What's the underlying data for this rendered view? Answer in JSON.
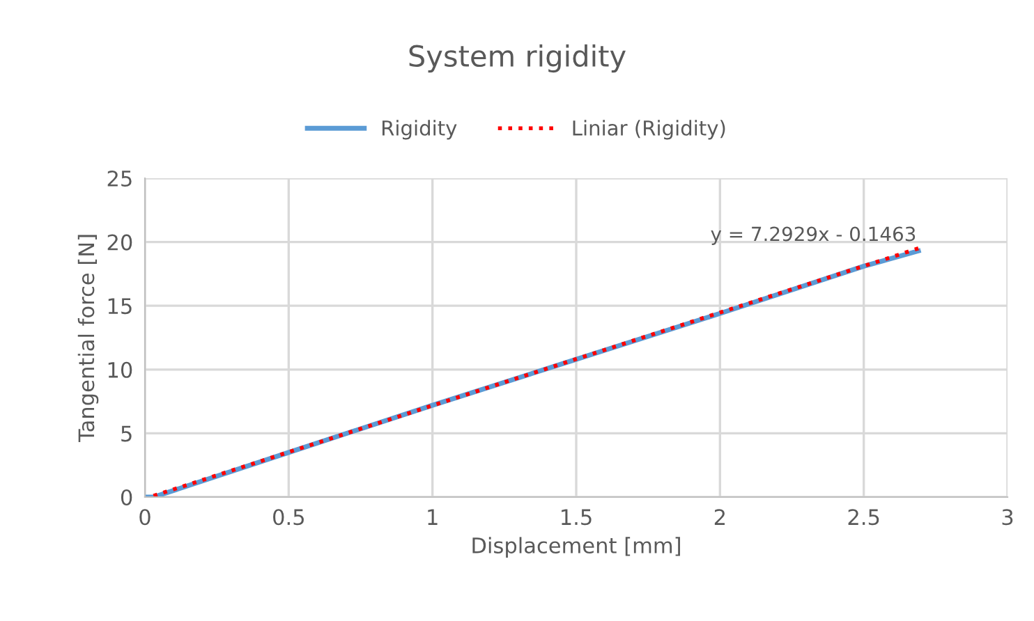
{
  "chart_data": {
    "type": "line",
    "title": "System rigidity",
    "xlabel": "Displacement [mm]",
    "ylabel": "Tangential force [N]",
    "series": [
      {
        "name": "Rigidity",
        "color": "#5b9bd5",
        "line_style": "solid",
        "x": [
          0,
          0.03,
          0.5,
          1,
          1.5,
          2,
          2.5,
          2.69
        ],
        "values": [
          0,
          0,
          3.5,
          7.2,
          10.8,
          14.4,
          18.1,
          19.3
        ]
      },
      {
        "name": "Liniar (Rigidity)",
        "color": "#ff0000",
        "line_style": "dotted",
        "x": [
          0.03,
          2.69
        ],
        "values": [
          0.1,
          19.5
        ]
      }
    ],
    "annotations": [
      "y = 7.2929x - 0.1463"
    ],
    "xlim": [
      0,
      3
    ],
    "xticks": [
      0,
      0.5,
      1,
      1.5,
      2,
      2.5,
      3
    ],
    "ylim": [
      0,
      25
    ],
    "yticks": [
      0,
      5,
      10,
      15,
      20,
      25
    ],
    "grid": true,
    "legend": "top",
    "marker": "none"
  }
}
